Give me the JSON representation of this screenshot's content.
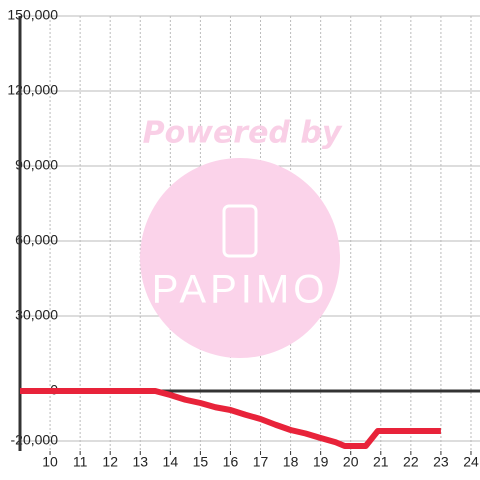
{
  "chart_data": {
    "type": "line",
    "watermark": {
      "top": "Powered by",
      "logo": "PAPIMO"
    },
    "x": [
      9,
      13.5,
      14,
      14.5,
      15,
      15.5,
      16,
      16.5,
      17,
      17.5,
      18,
      18.5,
      19,
      19.5,
      19.8,
      20.5,
      20.9,
      23
    ],
    "series": [
      {
        "color": "#e8233a",
        "values": [
          0,
          0,
          -1600,
          -3500,
          -4800,
          -6500,
          -7600,
          -9500,
          -11200,
          -13500,
          -15600,
          -17000,
          -18800,
          -20500,
          -22000,
          -22000,
          -16000,
          -16000
        ]
      }
    ],
    "xlim": [
      9,
      24.3
    ],
    "xticks": [
      10,
      11,
      12,
      13,
      14,
      15,
      16,
      17,
      18,
      19,
      20,
      21,
      22,
      23,
      24
    ],
    "ylim": [
      -24000,
      150000
    ],
    "yticks": [
      {
        "value": -20000,
        "label": "-20,000"
      },
      0,
      {
        "value": 30000,
        "label": "30,000"
      },
      {
        "value": 60000,
        "label": "60,000"
      },
      {
        "value": 90000,
        "label": "90,000"
      },
      {
        "value": 120000,
        "label": "120,000"
      },
      {
        "value": 150000,
        "label": "150,000"
      }
    ],
    "grid": true
  }
}
